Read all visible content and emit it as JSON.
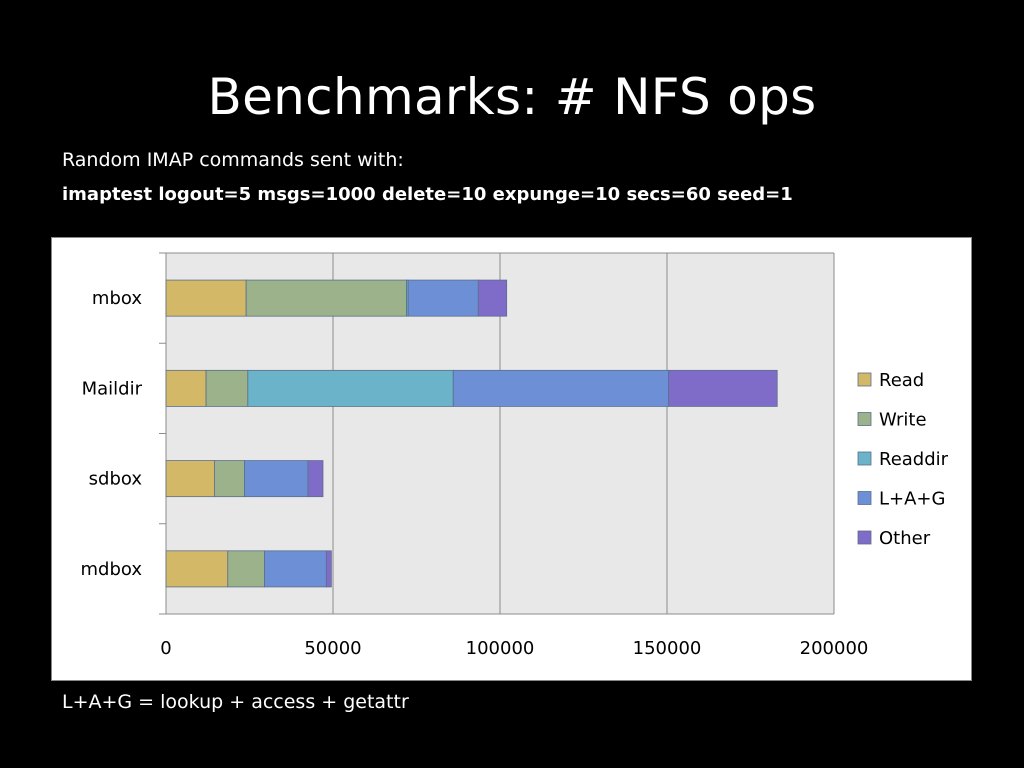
{
  "slide": {
    "title": "Benchmarks: # NFS ops",
    "subtitle_line1": "Random IMAP commands sent with:",
    "subtitle_line2": "imaptest logout=5 msgs=1000 delete=10 expunge=10 secs=60 seed=1",
    "footnote": "L+A+G = lookup + access + getattr"
  },
  "chart_data": {
    "type": "bar",
    "orientation": "horizontal",
    "stacked": true,
    "categories": [
      "mbox",
      "Maildir",
      "sdbox",
      "mdbox"
    ],
    "series": [
      {
        "name": "Read",
        "color": "#d3b868",
        "values": [
          24000,
          12000,
          14500,
          18500
        ]
      },
      {
        "name": "Write",
        "color": "#9bb28a",
        "values": [
          48000,
          12500,
          9000,
          11000
        ]
      },
      {
        "name": "Readdir",
        "color": "#6bb3c9",
        "values": [
          500,
          61500,
          0,
          0
        ]
      },
      {
        "name": "L+A+G",
        "color": "#6d8fd6",
        "values": [
          21000,
          64500,
          19000,
          18500
        ]
      },
      {
        "name": "Other",
        "color": "#7f6cc8",
        "values": [
          8500,
          32500,
          4500,
          1500
        ]
      }
    ],
    "xlim": [
      0,
      200000
    ],
    "xticks": [
      0,
      50000,
      100000,
      150000,
      200000
    ],
    "xtick_labels": [
      "0",
      "50000",
      "100000",
      "150000",
      "200000"
    ],
    "grid": "vertical",
    "legend_position": "right",
    "plot_background": "#e8e8e8"
  }
}
